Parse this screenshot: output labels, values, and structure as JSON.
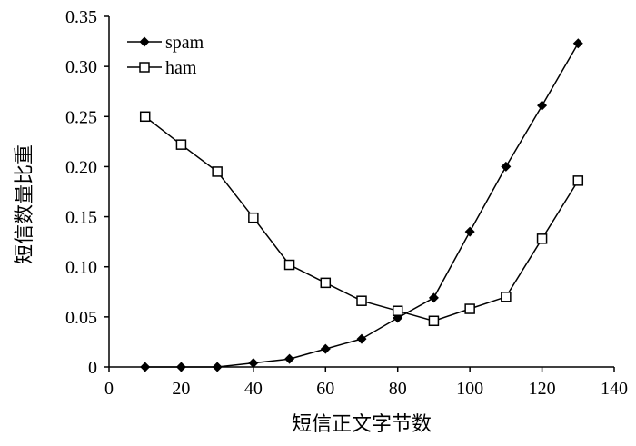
{
  "chart_data": {
    "type": "line",
    "xlabel": "短信正文字节数",
    "ylabel": "短信数量比重",
    "xlim": [
      0,
      140
    ],
    "ylim": [
      0,
      0.35
    ],
    "x_ticks": [
      "0",
      "20",
      "40",
      "60",
      "80",
      "100",
      "120",
      "140"
    ],
    "y_ticks": [
      "0",
      "0.05",
      "0.10",
      "0.15",
      "0.20",
      "0.25",
      "0.30",
      "0.35"
    ],
    "legend_position": "top-left",
    "grid": false,
    "series": [
      {
        "name": "spam",
        "marker": "filled-diamond",
        "x": [
          10,
          20,
          30,
          40,
          50,
          60,
          70,
          80,
          90,
          100,
          110,
          120,
          130
        ],
        "y": [
          0,
          0,
          0,
          0.004,
          0.008,
          0.018,
          0.028,
          0.049,
          0.069,
          0.135,
          0.2,
          0.261,
          0.323
        ]
      },
      {
        "name": "ham",
        "marker": "open-square",
        "x": [
          10,
          20,
          30,
          40,
          50,
          60,
          70,
          80,
          90,
          100,
          110,
          120,
          130
        ],
        "y": [
          0.25,
          0.222,
          0.195,
          0.149,
          0.102,
          0.084,
          0.066,
          0.056,
          0.046,
          0.058,
          0.07,
          0.128,
          0.186
        ]
      }
    ]
  }
}
